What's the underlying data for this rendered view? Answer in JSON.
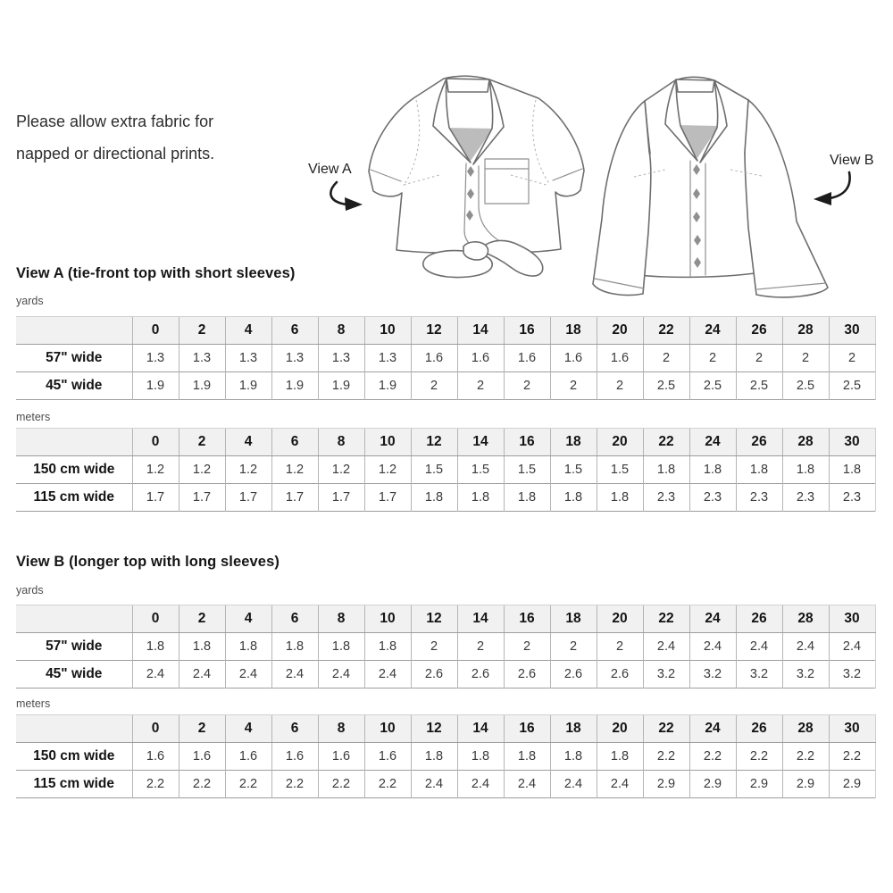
{
  "intro_text": "Please allow extra fabric for napped or directional prints.",
  "illustrations": {
    "view_a_label": "View A",
    "view_b_label": "View B"
  },
  "sizes": [
    "0",
    "2",
    "4",
    "6",
    "8",
    "10",
    "12",
    "14",
    "16",
    "18",
    "20",
    "22",
    "24",
    "26",
    "28",
    "30"
  ],
  "sections": [
    {
      "heading": "View A (tie-front top with short sleeves)",
      "tables": [
        {
          "unit": "yards",
          "rows": [
            {
              "label": "57\" wide",
              "values": [
                "1.3",
                "1.3",
                "1.3",
                "1.3",
                "1.3",
                "1.3",
                "1.6",
                "1.6",
                "1.6",
                "1.6",
                "1.6",
                "2",
                "2",
                "2",
                "2",
                "2"
              ]
            },
            {
              "label": "45\" wide",
              "values": [
                "1.9",
                "1.9",
                "1.9",
                "1.9",
                "1.9",
                "1.9",
                "2",
                "2",
                "2",
                "2",
                "2",
                "2.5",
                "2.5",
                "2.5",
                "2.5",
                "2.5"
              ]
            }
          ]
        },
        {
          "unit": "meters",
          "rows": [
            {
              "label": "150 cm wide",
              "values": [
                "1.2",
                "1.2",
                "1.2",
                "1.2",
                "1.2",
                "1.2",
                "1.5",
                "1.5",
                "1.5",
                "1.5",
                "1.5",
                "1.8",
                "1.8",
                "1.8",
                "1.8",
                "1.8"
              ]
            },
            {
              "label": "115 cm wide",
              "values": [
                "1.7",
                "1.7",
                "1.7",
                "1.7",
                "1.7",
                "1.7",
                "1.8",
                "1.8",
                "1.8",
                "1.8",
                "1.8",
                "2.3",
                "2.3",
                "2.3",
                "2.3",
                "2.3"
              ]
            }
          ]
        }
      ]
    },
    {
      "heading": "View B (longer top with long sleeves)",
      "tables": [
        {
          "unit": "yards",
          "rows": [
            {
              "label": "57\" wide",
              "values": [
                "1.8",
                "1.8",
                "1.8",
                "1.8",
                "1.8",
                "1.8",
                "2",
                "2",
                "2",
                "2",
                "2",
                "2.4",
                "2.4",
                "2.4",
                "2.4",
                "2.4"
              ]
            },
            {
              "label": "45\" wide",
              "values": [
                "2.4",
                "2.4",
                "2.4",
                "2.4",
                "2.4",
                "2.4",
                "2.6",
                "2.6",
                "2.6",
                "2.6",
                "2.6",
                "3.2",
                "3.2",
                "3.2",
                "3.2",
                "3.2"
              ]
            }
          ]
        },
        {
          "unit": "meters",
          "rows": [
            {
              "label": "150 cm wide",
              "values": [
                "1.6",
                "1.6",
                "1.6",
                "1.6",
                "1.6",
                "1.6",
                "1.8",
                "1.8",
                "1.8",
                "1.8",
                "1.8",
                "2.2",
                "2.2",
                "2.2",
                "2.2",
                "2.2"
              ]
            },
            {
              "label": "115 cm wide",
              "values": [
                "2.2",
                "2.2",
                "2.2",
                "2.2",
                "2.2",
                "2.2",
                "2.4",
                "2.4",
                "2.4",
                "2.4",
                "2.4",
                "2.9",
                "2.9",
                "2.9",
                "2.9",
                "2.9"
              ]
            }
          ]
        }
      ]
    }
  ],
  "colors": {
    "table_header_bg": "#f1f1f1",
    "table_border_dark": "#9d9d9d",
    "table_border_light": "#b5b5b5",
    "text_primary": "#161616",
    "text_data": "#3a3a3a",
    "illustration_stroke": "#6e6e6e",
    "collar_inset": "#bcbcbc",
    "arrow": "#1c1c1c"
  }
}
